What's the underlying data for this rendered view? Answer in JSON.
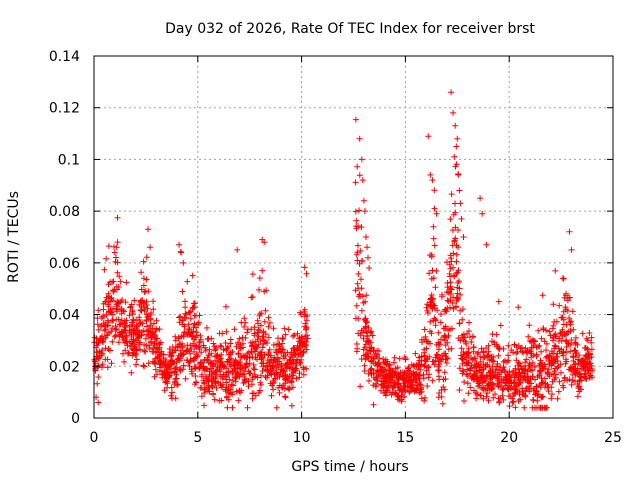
{
  "chart_data": {
    "type": "scatter",
    "title": "Day 032 of 2026, Rate Of TEC Index for receiver brst",
    "xlabel": "GPS time / hours",
    "ylabel": "ROTI / TECUs",
    "xlim": [
      0,
      25
    ],
    "ylim": [
      0,
      0.14
    ],
    "xticks": [
      "0",
      "5",
      "10",
      "15",
      "20",
      "25"
    ],
    "yticks": [
      "0",
      "0.02",
      "0.04",
      "0.06",
      "0.08",
      "0.1",
      "0.12",
      "0.14"
    ],
    "grid": true,
    "marker": "plus",
    "marker_color": "#ff0000",
    "profile_hours": [
      0,
      0.3,
      0.6,
      1.0,
      1.4,
      2.0,
      2.4,
      2.7,
      3.1,
      3.5,
      4.0,
      4.3,
      4.8,
      5.3,
      5.8,
      6.4,
      7.0,
      7.5,
      8.0,
      8.5,
      9.0,
      9.5,
      10.0,
      10.3,
      12.6,
      13.0,
      13.3,
      13.7,
      14.2,
      14.7,
      15.2,
      15.6,
      16.0,
      16.3,
      16.6,
      17.0,
      17.4,
      17.7,
      18.1,
      18.5,
      19.0,
      19.5,
      20.0,
      20.5,
      21.0,
      21.5,
      22.0,
      22.5,
      22.9,
      23.3,
      23.8,
      24.0
    ],
    "profile_center": [
      0.022,
      0.028,
      0.036,
      0.046,
      0.034,
      0.03,
      0.042,
      0.032,
      0.025,
      0.016,
      0.022,
      0.032,
      0.03,
      0.018,
      0.018,
      0.018,
      0.02,
      0.024,
      0.028,
      0.022,
      0.02,
      0.018,
      0.026,
      0.034,
      0.06,
      0.035,
      0.021,
      0.018,
      0.015,
      0.013,
      0.014,
      0.016,
      0.026,
      0.045,
      0.02,
      0.032,
      0.07,
      0.026,
      0.022,
      0.016,
      0.018,
      0.016,
      0.014,
      0.016,
      0.018,
      0.016,
      0.02,
      0.028,
      0.03,
      0.016,
      0.022,
      0.024
    ],
    "profile_spread": [
      0.008,
      0.012,
      0.014,
      0.016,
      0.012,
      0.01,
      0.016,
      0.01,
      0.008,
      0.006,
      0.012,
      0.016,
      0.014,
      0.01,
      0.01,
      0.01,
      0.012,
      0.014,
      0.018,
      0.012,
      0.01,
      0.01,
      0.012,
      0.014,
      0.03,
      0.02,
      0.01,
      0.006,
      0.006,
      0.006,
      0.006,
      0.008,
      0.016,
      0.03,
      0.012,
      0.02,
      0.03,
      0.014,
      0.012,
      0.008,
      0.01,
      0.01,
      0.008,
      0.01,
      0.012,
      0.012,
      0.014,
      0.018,
      0.016,
      0.008,
      0.008,
      0.008
    ],
    "peak_points": [
      [
        0.1,
        0.008
      ],
      [
        0.2,
        0.006
      ],
      [
        1.0,
        0.064
      ],
      [
        1.1,
        0.066
      ],
      [
        2.6,
        0.073
      ],
      [
        2.7,
        0.066
      ],
      [
        4.1,
        0.067
      ],
      [
        4.2,
        0.064
      ],
      [
        4.3,
        0.06
      ],
      [
        6.9,
        0.065
      ],
      [
        8.1,
        0.069
      ],
      [
        8.2,
        0.068
      ],
      [
        12.8,
        0.108
      ],
      [
        12.9,
        0.1
      ],
      [
        12.95,
        0.092
      ],
      [
        13.0,
        0.084
      ],
      [
        13.05,
        0.08
      ],
      [
        13.1,
        0.07
      ],
      [
        13.15,
        0.066
      ],
      [
        13.2,
        0.062
      ],
      [
        13.25,
        0.058
      ],
      [
        16.1,
        0.109
      ],
      [
        16.2,
        0.094
      ],
      [
        16.3,
        0.092
      ],
      [
        16.4,
        0.081
      ],
      [
        16.5,
        0.079
      ],
      [
        16.35,
        0.074
      ],
      [
        17.2,
        0.126
      ],
      [
        17.3,
        0.118
      ],
      [
        17.4,
        0.113
      ],
      [
        17.5,
        0.108
      ],
      [
        17.45,
        0.105
      ],
      [
        17.35,
        0.101
      ],
      [
        17.55,
        0.094
      ],
      [
        17.6,
        0.088
      ],
      [
        17.65,
        0.083
      ],
      [
        17.7,
        0.077
      ],
      [
        17.8,
        0.07
      ],
      [
        18.6,
        0.085
      ],
      [
        18.7,
        0.079
      ],
      [
        18.9,
        0.067
      ],
      [
        19.5,
        0.045
      ],
      [
        22.9,
        0.072
      ],
      [
        23.0,
        0.065
      ]
    ]
  }
}
